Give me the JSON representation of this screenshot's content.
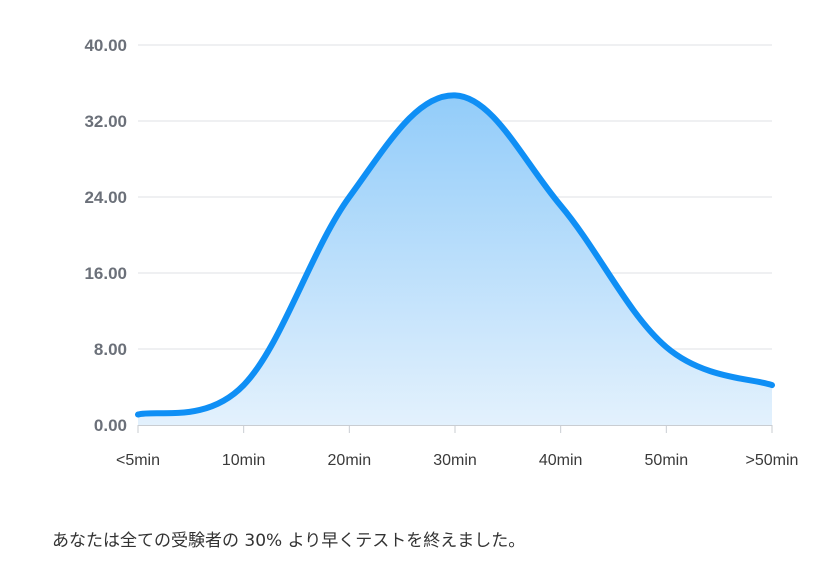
{
  "chart_data": {
    "type": "area",
    "title": "",
    "xlabel": "",
    "ylabel": "",
    "categories": [
      "<5min",
      "10min",
      "20min",
      "30min",
      "40min",
      "50min",
      ">50min"
    ],
    "series": [
      {
        "values": [
          1.1,
          4.2,
          24.0,
          34.7,
          23.1,
          8.2,
          4.2
        ]
      }
    ],
    "ylim": [
      0,
      40
    ],
    "yticks": [
      "0.00",
      "8.00",
      "16.00",
      "24.00",
      "32.00",
      "40.00"
    ],
    "grid": true,
    "legend": "none",
    "colors": {
      "line": "#0f8ff5",
      "fill_top": "#92ccf9",
      "fill_bottom": "#e3f1fd",
      "grid": "#dfe2e6",
      "axis": "#c9cdd2"
    }
  },
  "caption": "あなたは全ての受験者の 30% より早くテストを終えました。"
}
